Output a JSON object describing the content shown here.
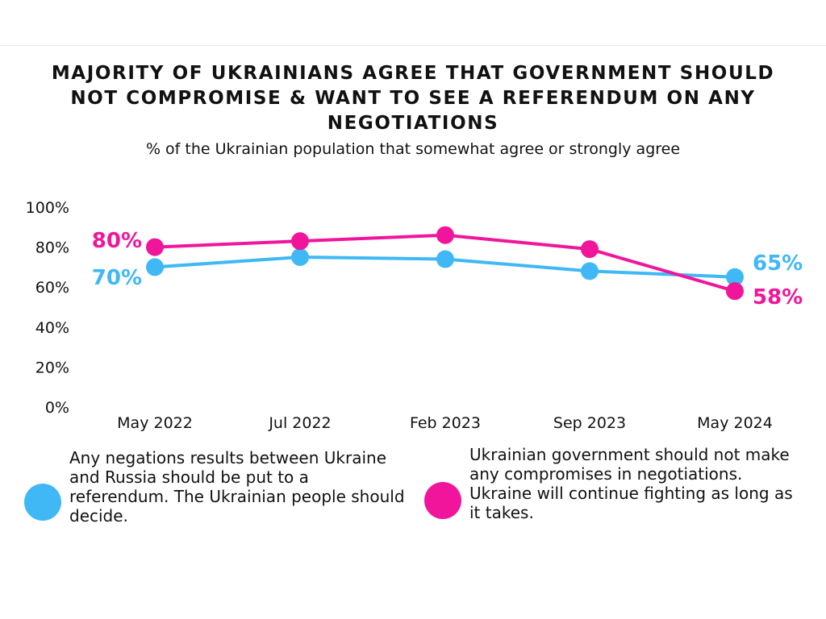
{
  "title": "MAJORITY OF UKRAINIANS AGREE THAT GOVERNMENT SHOULD NOT COMPROMISE & WANT TO SEE A REFERENDUM ON ANY NEGOTIATIONS",
  "subtitle": "% of the Ukrainian population that somewhat agree or strongly agree",
  "colors": {
    "blue": "#3fb8f5",
    "pink": "#f0159b",
    "text": "#111111"
  },
  "chart_data": {
    "type": "line",
    "title": "MAJORITY OF UKRAINIANS AGREE THAT GOVERNMENT SHOULD NOT COMPROMISE & WANT TO SEE A REFERENDUM ON ANY NEGOTIATIONS",
    "subtitle": "% of the Ukrainian population that somewhat agree or strongly agree",
    "categories": [
      "May 2022",
      "Jul 2022",
      "Feb 2023",
      "Sep 2023",
      "May 2024"
    ],
    "y_ticks": [
      "0%",
      "20%",
      "40%",
      "60%",
      "80%",
      "100%"
    ],
    "ylim": [
      0,
      100
    ],
    "grid": false,
    "legend_position": "bottom",
    "series": [
      {
        "key": "blue",
        "name": "Any negations results between Ukraine and Russia should be put to a referendum. The Ukrainian people should decide.",
        "color": "#3fb8f5",
        "values": [
          70,
          75,
          74,
          68,
          65
        ],
        "start_label": "70%",
        "end_label": "65%"
      },
      {
        "key": "pink",
        "name": "Ukrainian government should not make any compromises in negotiations. Ukraine will continue fighting as long as it takes.",
        "color": "#f0159b",
        "values": [
          80,
          83,
          86,
          79,
          58
        ],
        "start_label": "80%",
        "end_label": "58%"
      }
    ]
  },
  "legend": [
    {
      "text": "Any negations results between Ukraine and Russia should be put to a referendum. The Ukrainian people should decide.",
      "color": "#3fb8f5"
    },
    {
      "text": "Ukrainian government should not make any compromises in negotiations. Ukraine will continue fighting as long as it takes.",
      "color": "#f0159b"
    }
  ]
}
